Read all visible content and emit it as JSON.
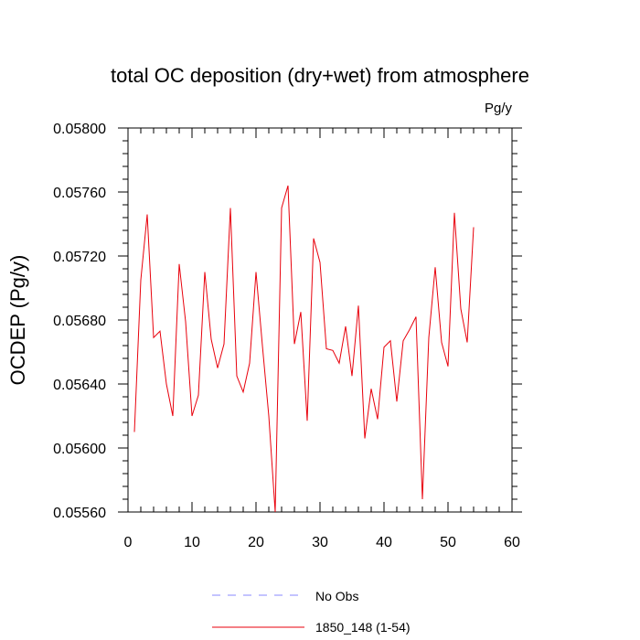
{
  "chart_data": {
    "type": "line",
    "title": "total OC deposition (dry+wet) from atmosphere",
    "units_label": "Pg/y",
    "ylabel": "OCDEP  (Pg/y)",
    "xlabel": "",
    "xlim": [
      0,
      60
    ],
    "ylim": [
      0.0556,
      0.058
    ],
    "x_ticks": [
      0,
      10,
      20,
      30,
      40,
      50,
      60
    ],
    "x_tick_labels": [
      "0",
      "10",
      "20",
      "30",
      "40",
      "50",
      "60"
    ],
    "y_ticks": [
      0.0556,
      0.056,
      0.0564,
      0.0568,
      0.0572,
      0.0576,
      0.058
    ],
    "y_tick_labels": [
      "0.05560",
      "0.05600",
      "0.05640",
      "0.05680",
      "0.05720",
      "0.05760",
      "0.05800"
    ],
    "grid": false,
    "legend_position": "bottom-center",
    "series": [
      {
        "name": "1850_148 (1-54)",
        "color": "#e8000b",
        "style": "solid",
        "x": [
          1,
          2,
          3,
          4,
          5,
          6,
          7,
          8,
          9,
          10,
          11,
          12,
          13,
          14,
          15,
          16,
          17,
          18,
          19,
          20,
          21,
          22,
          23,
          24,
          25,
          26,
          27,
          28,
          29,
          30,
          31,
          32,
          33,
          34,
          35,
          36,
          37,
          38,
          39,
          40,
          41,
          42,
          43,
          44,
          45,
          46,
          47,
          48,
          49,
          50,
          51,
          52,
          53,
          54
        ],
        "values": [
          0.0561,
          0.05705,
          0.05746,
          0.05669,
          0.05673,
          0.0564,
          0.0562,
          0.05715,
          0.05679,
          0.0562,
          0.05633,
          0.0571,
          0.05668,
          0.0565,
          0.05665,
          0.0575,
          0.05645,
          0.05635,
          0.05653,
          0.0571,
          0.05664,
          0.0562,
          0.0556,
          0.0575,
          0.05764,
          0.05665,
          0.05685,
          0.05617,
          0.05731,
          0.05716,
          0.05662,
          0.05661,
          0.05653,
          0.05676,
          0.05645,
          0.05689,
          0.05606,
          0.05637,
          0.05618,
          0.05663,
          0.05667,
          0.05629,
          0.05667,
          0.05674,
          0.05682,
          0.05568,
          0.05669,
          0.05713,
          0.05666,
          0.05651,
          0.05747,
          0.05687,
          0.05666,
          0.05738
        ]
      }
    ],
    "legend": [
      {
        "label": "No Obs",
        "color": "#8888ff",
        "style": "dashed"
      },
      {
        "label": "1850_148 (1-54)",
        "color": "#e8000b",
        "style": "solid"
      }
    ]
  }
}
